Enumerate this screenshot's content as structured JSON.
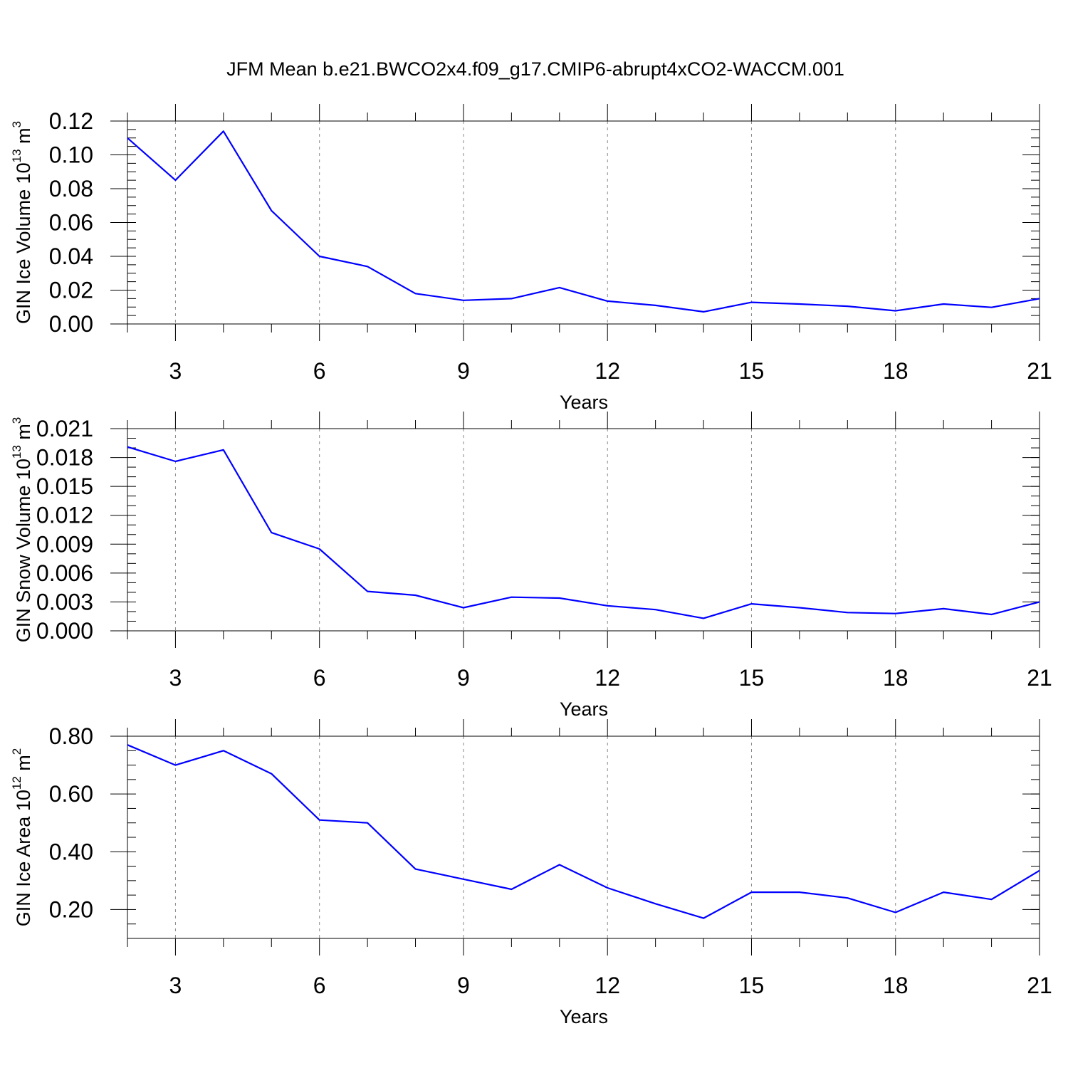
{
  "figure_title": "JFM Mean b.e21.BWCO2x4.f09_g17.CMIP6-abrupt4xCO2-WACCM.001",
  "line_color": "#0000ff",
  "chart_data": [
    {
      "type": "line",
      "id": "ice-volume",
      "xlabel": "Years",
      "ylabel": {
        "text": "GIN Ice Volume 10",
        "sup": "13",
        "unit": " m",
        "unit_sup": "3"
      },
      "xlim": [
        2,
        21
      ],
      "ylim": [
        0.0,
        0.12
      ],
      "xticks": [
        3,
        6,
        9,
        12,
        15,
        18,
        21
      ],
      "xtick_labels": [
        "3",
        "6",
        "9",
        "12",
        "15",
        "18",
        "21"
      ],
      "yticks": [
        0.0,
        0.02,
        0.04,
        0.06,
        0.08,
        0.1,
        0.12
      ],
      "ytick_labels": [
        "0.00",
        "0.02",
        "0.04",
        "0.06",
        "0.08",
        "0.10",
        "0.12"
      ],
      "yminor_step": 0.005,
      "grid": "x-dashed",
      "series": [
        {
          "name": "GIN Ice Volume",
          "x": [
            2,
            3,
            4,
            5,
            6,
            7,
            8,
            9,
            10,
            11,
            12,
            13,
            14,
            15,
            16,
            17,
            18,
            19,
            20,
            21
          ],
          "values": [
            0.11,
            0.085,
            0.114,
            0.067,
            0.04,
            0.034,
            0.018,
            0.014,
            0.015,
            0.0215,
            0.0135,
            0.011,
            0.0072,
            0.0128,
            0.0118,
            0.0105,
            0.0078,
            0.0118,
            0.0098,
            0.015
          ]
        }
      ]
    },
    {
      "type": "line",
      "id": "snow-volume",
      "xlabel": "Years",
      "ylabel": {
        "text": "GIN Snow Volume 10",
        "sup": "13",
        "unit": " m",
        "unit_sup": "3"
      },
      "xlim": [
        2,
        21
      ],
      "ylim": [
        0.0,
        0.021
      ],
      "xticks": [
        3,
        6,
        9,
        12,
        15,
        18,
        21
      ],
      "xtick_labels": [
        "3",
        "6",
        "9",
        "12",
        "15",
        "18",
        "21"
      ],
      "yticks": [
        0.0,
        0.003,
        0.006,
        0.009,
        0.012,
        0.015,
        0.018,
        0.021
      ],
      "ytick_labels": [
        "0.000",
        "0.003",
        "0.006",
        "0.009",
        "0.012",
        "0.015",
        "0.018",
        "0.021"
      ],
      "yminor_step": 0.001,
      "grid": "x-dashed",
      "series": [
        {
          "name": "GIN Snow Volume",
          "x": [
            2,
            3,
            4,
            5,
            6,
            7,
            8,
            9,
            10,
            11,
            12,
            13,
            14,
            15,
            16,
            17,
            18,
            19,
            20,
            21
          ],
          "values": [
            0.0191,
            0.0176,
            0.0188,
            0.0102,
            0.0085,
            0.0041,
            0.0037,
            0.0024,
            0.0035,
            0.0034,
            0.0026,
            0.0022,
            0.0013,
            0.0028,
            0.0024,
            0.0019,
            0.0018,
            0.0023,
            0.0017,
            0.003
          ]
        }
      ]
    },
    {
      "type": "line",
      "id": "ice-area",
      "xlabel": "Years",
      "ylabel": {
        "text": "GIN Ice Area 10",
        "sup": "12",
        "unit": " m",
        "unit_sup": "2"
      },
      "xlim": [
        2,
        21
      ],
      "ylim": [
        0.1,
        0.8
      ],
      "xticks": [
        3,
        6,
        9,
        12,
        15,
        18,
        21
      ],
      "xtick_labels": [
        "3",
        "6",
        "9",
        "12",
        "15",
        "18",
        "21"
      ],
      "yticks": [
        0.2,
        0.4,
        0.6,
        0.8
      ],
      "ytick_labels": [
        "0.20",
        "0.40",
        "0.60",
        "0.80"
      ],
      "yminor_step": 0.05,
      "grid": "x-dashed",
      "series": [
        {
          "name": "GIN Ice Area",
          "x": [
            2,
            3,
            4,
            5,
            6,
            7,
            8,
            9,
            10,
            11,
            12,
            13,
            14,
            15,
            16,
            17,
            18,
            19,
            20,
            21
          ],
          "values": [
            0.77,
            0.7,
            0.75,
            0.67,
            0.51,
            0.5,
            0.34,
            0.305,
            0.27,
            0.355,
            0.275,
            0.22,
            0.17,
            0.26,
            0.26,
            0.24,
            0.19,
            0.26,
            0.235,
            0.335
          ]
        }
      ]
    }
  ]
}
